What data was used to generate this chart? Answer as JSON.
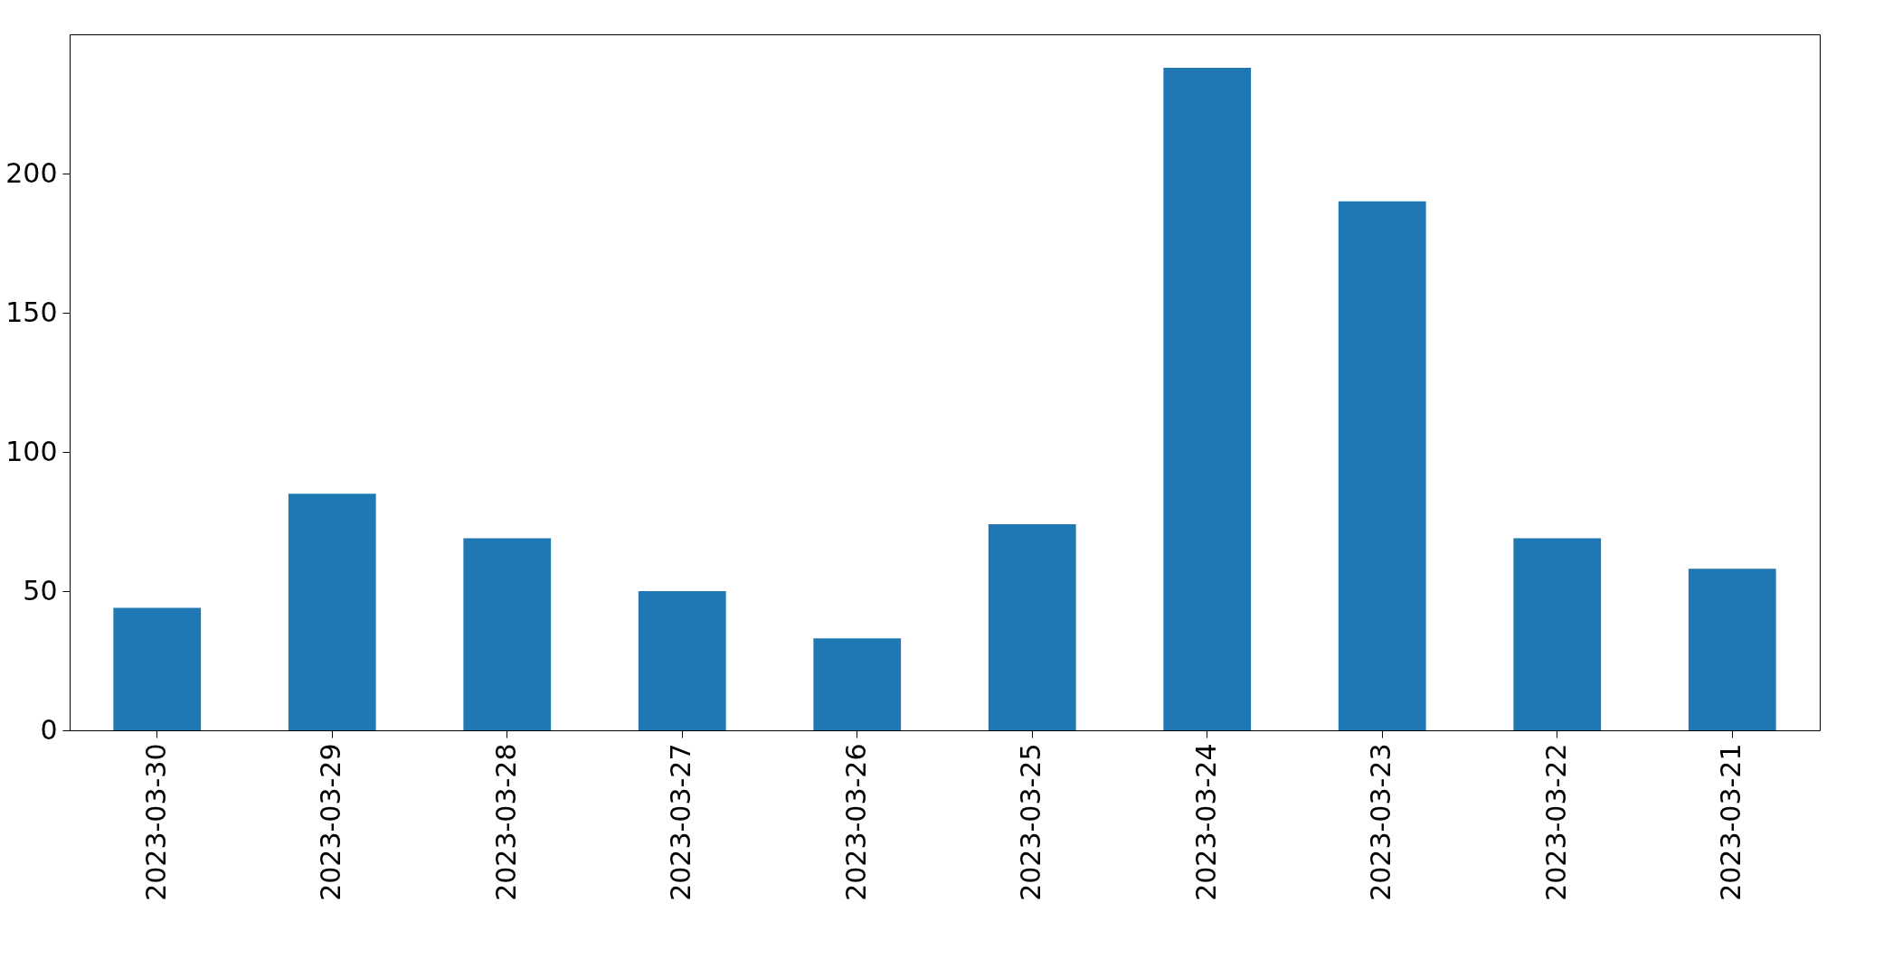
{
  "chart_data": {
    "type": "bar",
    "categories": [
      "2023-03-30",
      "2023-03-29",
      "2023-03-28",
      "2023-03-27",
      "2023-03-26",
      "2023-03-25",
      "2023-03-24",
      "2023-03-23",
      "2023-03-22",
      "2023-03-21"
    ],
    "values": [
      44,
      85,
      69,
      50,
      33,
      74,
      238,
      190,
      69,
      58
    ],
    "color": "#1f77b4",
    "ylim": [
      0,
      250
    ],
    "yticks": [
      0,
      50,
      100,
      150,
      200
    ],
    "grid": false
  }
}
